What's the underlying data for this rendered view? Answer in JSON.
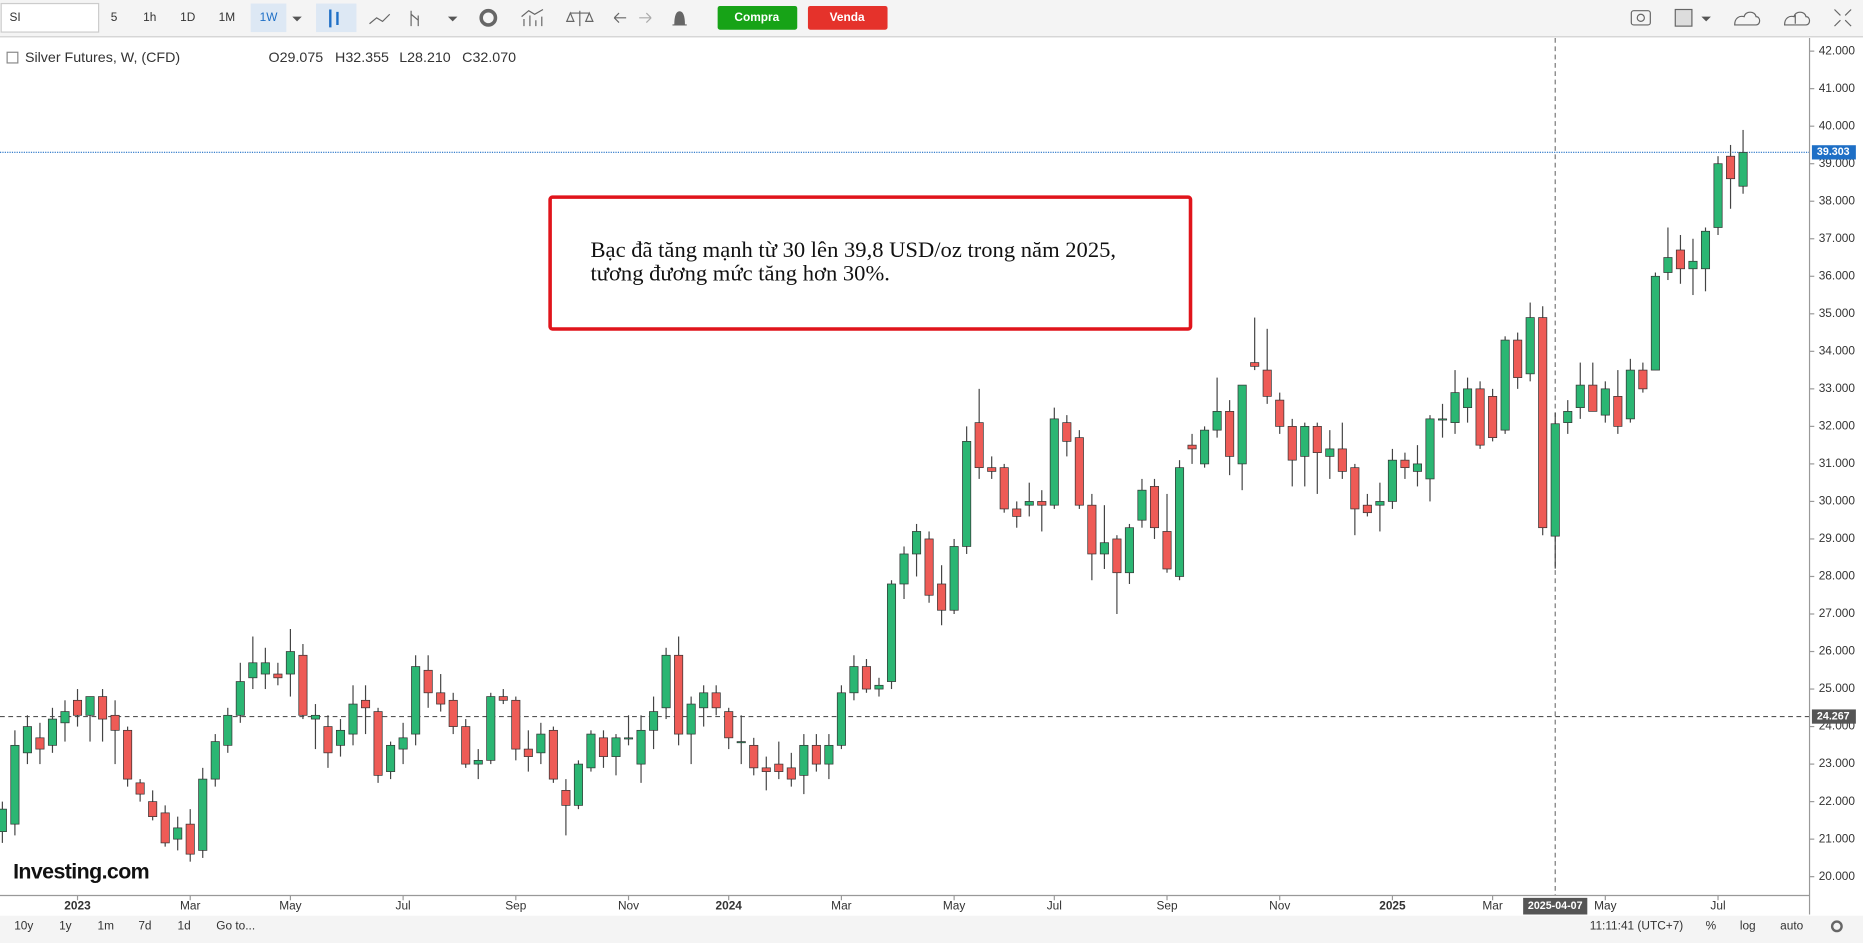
{
  "toolbar": {
    "symbol": "SI",
    "intervals": [
      "5",
      "1h",
      "1D",
      "1M",
      "1W"
    ],
    "active_interval": 4,
    "buy": "Compra",
    "sell": "Venda"
  },
  "legend": {
    "title": "Silver Futures, W, (CFD)",
    "open": "O29.075",
    "high": "H32.355",
    "low": "L28.210",
    "close": "C32.070"
  },
  "chart_data": {
    "type": "candlestick",
    "series": {
      "open": [
        21.2,
        21.4,
        23.3,
        23.7,
        23.5,
        24.1,
        24.7,
        24.3,
        24.8,
        24.3,
        23.9,
        22.5,
        22.0,
        21.7,
        21.0,
        21.4,
        20.7,
        22.6,
        23.5,
        24.3,
        25.3,
        25.4,
        25.4,
        25.4,
        25.9,
        24.2,
        24.0,
        23.5,
        23.8,
        24.7,
        24.4,
        22.8,
        23.4,
        23.8,
        25.5,
        24.9,
        24.7,
        24.0,
        23.0,
        23.1,
        24.8,
        24.7,
        23.4,
        23.3,
        23.9,
        22.3,
        21.9,
        22.9,
        23.7,
        23.2,
        23.7,
        23.0,
        23.9,
        24.5,
        25.9,
        23.8,
        24.5,
        24.9,
        24.4,
        23.6,
        23.5,
        22.9,
        23.0,
        22.9,
        22.7,
        23.5,
        23.0,
        23.5,
        24.9,
        25.6,
        25.0,
        25.2,
        27.8,
        28.6,
        29.0,
        27.8,
        27.1,
        28.8,
        32.1,
        30.9,
        30.9,
        29.8,
        29.9,
        30.0,
        29.9,
        32.1,
        31.7,
        29.9,
        28.6,
        29.0,
        28.1,
        29.5,
        30.4,
        29.2,
        28.0,
        31.5,
        31.0,
        31.9,
        32.4,
        31.0,
        33.7,
        33.5,
        32.7,
        32.0,
        31.2,
        32.0,
        31.2,
        31.4,
        30.9,
        29.9,
        29.9,
        30.0,
        31.1,
        30.8,
        30.6,
        32.2,
        32.1,
        32.5,
        33.0,
        32.8,
        31.9,
        34.3,
        33.4,
        34.9,
        29.075,
        32.1,
        32.5,
        33.1,
        32.3,
        32.8,
        32.2,
        33.5,
        33.5,
        36.1,
        36.7,
        36.2,
        36.2,
        37.3,
        39.2,
        38.4
      ],
      "high": [
        22.0,
        23.9,
        24.3,
        24.1,
        24.5,
        24.7,
        25.0,
        24.8,
        25.0,
        24.7,
        24.0,
        22.6,
        22.3,
        21.9,
        21.6,
        21.8,
        22.9,
        23.8,
        24.5,
        25.7,
        26.4,
        26.1,
        25.7,
        26.6,
        26.2,
        24.6,
        24.3,
        24.2,
        25.1,
        25.1,
        24.5,
        23.6,
        24.1,
        25.9,
        25.9,
        25.4,
        24.9,
        24.2,
        23.4,
        24.9,
        25.0,
        24.8,
        23.9,
        24.1,
        24.0,
        22.6,
        23.1,
        23.9,
        23.9,
        23.8,
        24.3,
        24.3,
        24.8,
        26.1,
        26.4,
        24.8,
        25.1,
        25.1,
        24.5,
        24.3,
        23.7,
        23.2,
        23.6,
        23.3,
        23.8,
        23.8,
        23.8,
        25.1,
        25.9,
        25.8,
        25.3,
        27.9,
        28.8,
        29.4,
        29.2,
        28.3,
        29.0,
        32.0,
        33.0,
        31.2,
        31.0,
        30.0,
        30.5,
        30.3,
        32.5,
        32.3,
        31.9,
        30.2,
        29.9,
        29.1,
        29.4,
        30.6,
        30.6,
        30.2,
        31.1,
        31.8,
        32.0,
        33.3,
        32.7,
        33.0,
        34.9,
        34.6,
        32.9,
        32.2,
        32.1,
        32.1,
        31.9,
        32.1,
        31.0,
        30.2,
        30.5,
        31.4,
        31.3,
        31.5,
        32.3,
        32.6,
        33.5,
        33.3,
        33.2,
        33.0,
        34.4,
        34.5,
        35.3,
        35.2,
        32.355,
        32.7,
        33.7,
        33.7,
        33.2,
        33.5,
        33.8,
        33.7,
        36.1,
        37.3,
        37.1,
        37.0,
        37.3,
        39.2,
        39.5,
        39.9
      ],
      "low": [
        20.9,
        21.1,
        23.0,
        23.0,
        23.3,
        23.6,
        24.0,
        23.6,
        23.6,
        23.0,
        22.4,
        22.0,
        21.5,
        20.8,
        20.7,
        20.4,
        20.5,
        22.4,
        23.3,
        24.1,
        25.0,
        25.0,
        25.1,
        24.8,
        24.2,
        23.4,
        22.9,
        23.2,
        23.5,
        23.8,
        22.5,
        22.6,
        23.0,
        23.5,
        24.5,
        24.4,
        23.8,
        22.9,
        22.6,
        23.0,
        24.6,
        23.1,
        22.8,
        23.0,
        22.5,
        21.1,
        21.8,
        22.8,
        22.9,
        22.7,
        23.5,
        22.5,
        23.4,
        24.2,
        23.5,
        23.0,
        24.0,
        24.3,
        23.4,
        23.0,
        22.7,
        22.3,
        22.6,
        22.4,
        22.2,
        22.8,
        22.6,
        23.4,
        24.7,
        24.9,
        24.8,
        25.0,
        27.4,
        28.0,
        27.3,
        26.7,
        27.0,
        28.6,
        30.6,
        30.6,
        29.7,
        29.3,
        29.6,
        29.2,
        29.8,
        31.2,
        29.8,
        27.9,
        28.2,
        27.0,
        27.8,
        29.3,
        29.0,
        28.1,
        27.9,
        31.0,
        30.9,
        31.7,
        30.7,
        30.3,
        33.5,
        32.6,
        31.8,
        30.4,
        30.4,
        30.2,
        30.6,
        30.6,
        29.1,
        29.6,
        29.2,
        29.8,
        30.6,
        30.4,
        30.0,
        31.7,
        31.8,
        32.1,
        31.4,
        31.6,
        31.8,
        33.0,
        33.2,
        29.1,
        28.21,
        31.8,
        32.2,
        32.4,
        32.1,
        31.8,
        32.1,
        32.9,
        33.5,
        35.9,
        35.8,
        35.5,
        35.6,
        37.1,
        37.8,
        38.2
      ],
      "close": [
        21.8,
        23.5,
        24.0,
        23.4,
        24.2,
        24.4,
        24.3,
        24.8,
        24.2,
        23.9,
        22.6,
        22.2,
        21.6,
        20.9,
        21.3,
        20.6,
        22.6,
        23.6,
        24.3,
        25.2,
        25.7,
        25.7,
        25.3,
        26.0,
        24.3,
        24.3,
        23.3,
        23.9,
        24.6,
        24.5,
        22.7,
        23.5,
        23.7,
        25.6,
        24.9,
        24.6,
        24.0,
        23.0,
        23.1,
        24.8,
        24.7,
        23.4,
        23.2,
        23.8,
        22.6,
        21.9,
        23.0,
        23.8,
        23.2,
        23.7,
        23.7,
        23.9,
        24.4,
        25.9,
        23.8,
        24.6,
        24.9,
        24.5,
        23.7,
        23.6,
        22.9,
        22.8,
        22.8,
        22.6,
        23.5,
        23.0,
        23.5,
        24.9,
        25.6,
        25.0,
        25.1,
        27.8,
        28.6,
        29.2,
        27.5,
        27.1,
        28.8,
        31.6,
        30.9,
        30.8,
        29.8,
        29.6,
        30.0,
        29.9,
        32.2,
        31.6,
        29.9,
        28.6,
        28.9,
        28.1,
        29.3,
        30.3,
        29.3,
        28.2,
        30.9,
        31.4,
        31.9,
        32.4,
        31.2,
        33.1,
        33.6,
        32.8,
        32.0,
        31.1,
        32.0,
        31.3,
        31.4,
        30.8,
        29.8,
        29.7,
        30.0,
        31.1,
        30.9,
        31.0,
        32.2,
        32.2,
        32.9,
        33.0,
        31.5,
        31.7,
        34.3,
        33.3,
        34.9,
        29.3,
        32.07,
        32.4,
        33.1,
        32.4,
        33.0,
        32.0,
        33.5,
        33.0,
        36.0,
        36.5,
        36.2,
        36.4,
        37.2,
        39.0,
        38.6,
        39.3
      ]
    },
    "up_color": "#2bb673",
    "down_color": "#ee5b56",
    "ylim": [
      19.53,
      42.35
    ],
    "yticks": [
      {
        "value": 20,
        "label": "20.000"
      },
      {
        "value": 21,
        "label": "21.000"
      },
      {
        "value": 22,
        "label": "22.000"
      },
      {
        "value": 23,
        "label": "23.000"
      },
      {
        "value": 24,
        "label": "24.000"
      },
      {
        "value": 25,
        "label": "25.000"
      },
      {
        "value": 26,
        "label": "26.000"
      },
      {
        "value": 27,
        "label": "27.000"
      },
      {
        "value": 28,
        "label": "28.000"
      },
      {
        "value": 29,
        "label": "29.000"
      },
      {
        "value": 30,
        "label": "30.000"
      },
      {
        "value": 31,
        "label": "31.000"
      },
      {
        "value": 32,
        "label": "32.000"
      },
      {
        "value": 33,
        "label": "33.000"
      },
      {
        "value": 34,
        "label": "34.000"
      },
      {
        "value": 35,
        "label": "35.000"
      },
      {
        "value": 36,
        "label": "36.000"
      },
      {
        "value": 37,
        "label": "37.000"
      },
      {
        "value": 38,
        "label": "38.000"
      },
      {
        "value": 39,
        "label": "39.000"
      },
      {
        "value": 40,
        "label": "40.000"
      },
      {
        "value": 41,
        "label": "41.000"
      },
      {
        "value": 42,
        "label": "42.000"
      }
    ],
    "xticks": [
      {
        "value": 6,
        "label": "2023"
      },
      {
        "value": 15,
        "label": "Mar"
      },
      {
        "value": 23,
        "label": "May"
      },
      {
        "value": 32,
        "label": "Jul"
      },
      {
        "value": 41,
        "label": "Sep"
      },
      {
        "value": 50,
        "label": "Nov"
      },
      {
        "value": 58,
        "label": "2024"
      },
      {
        "value": 67,
        "label": "Mar"
      },
      {
        "value": 76,
        "label": "May"
      },
      {
        "value": 84,
        "label": "Jul"
      },
      {
        "value": 93,
        "label": "Sep"
      },
      {
        "value": 102,
        "label": "Nov"
      },
      {
        "value": 111,
        "label": "2025"
      },
      {
        "value": 119,
        "label": "Mar"
      },
      {
        "value": 128,
        "label": "May"
      },
      {
        "value": 137,
        "label": "Jul"
      }
    ],
    "price_lines": [
      {
        "value": 39.303,
        "label": "39.303",
        "color": "#1e6fc6"
      },
      {
        "value": 24.267,
        "label": "24.267",
        "color": "#555555"
      }
    ],
    "crosshair": {
      "value": 124,
      "label": "2025-04-07"
    },
    "annotation": [
      "Bạc đã tăng mạnh từ 30 lên 39,8 USD/oz trong năm 2025,",
      "tương đương mức tăng hơn 30%."
    ],
    "watermark": "Investing.com"
  },
  "footer": {
    "ranges": [
      "10y",
      "1y",
      "1m",
      "7d",
      "1d"
    ],
    "goto": "Go to...",
    "time": "11:11:41 (UTC+7)",
    "percent": "%",
    "log": "log",
    "auto": "auto"
  }
}
